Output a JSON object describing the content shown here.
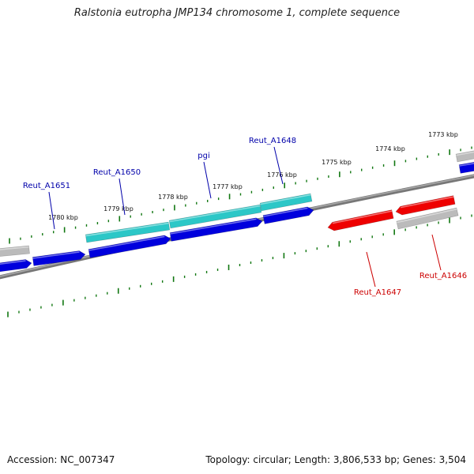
{
  "title": "Ralstonia eutropha JMP134 chromosome 1, complete sequence",
  "footer": {
    "accession": "Accession: NC_007347",
    "summary": "Topology: circular; Length: 3,806,533 bp; Genes: 3,504"
  },
  "colors": {
    "forward_gene": "#0000dd",
    "reverse_gene": "#ee0000",
    "forward_label": "#0000aa",
    "reverse_label": "#cc0000",
    "cds_forward": "#2cc7c7",
    "cds_neutral": "#bbbbbb",
    "backbone": "#888888",
    "tick": "#117711"
  },
  "scale_labels": [
    "1780 kbp",
    "1779 kbp",
    "1778 kbp",
    "1777 kbp",
    "1776 kbp",
    "1775 kbp",
    "1774 kbp",
    "1773 kbp"
  ],
  "gene_labels": {
    "forward": [
      "Reut_A1651",
      "Reut_A1650",
      "pgi",
      "Reut_A1648"
    ],
    "reverse": [
      "Reut_A1647",
      "Reut_A1646"
    ]
  }
}
